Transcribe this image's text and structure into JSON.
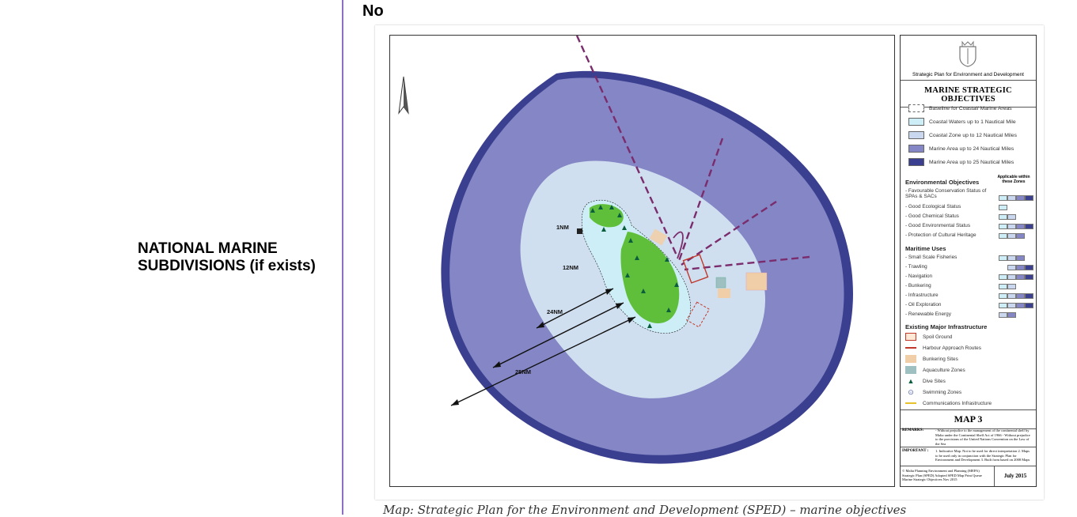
{
  "row_label": "NATIONAL MARINE SUBDIVISIONS (if exists)",
  "answer": "No",
  "map": {
    "distance_labels": [
      "1NM",
      "12NM",
      "24NM",
      "25NM"
    ],
    "colors": {
      "outer_25nm": "#3b3f8f",
      "marine_24nm": "#8486c5",
      "coastal_12nm": "#d0dff0",
      "coastal_1nm": "#cdeef6",
      "island": "#5fbf3a",
      "route_line": "#7a2c6c"
    }
  },
  "legend": {
    "org": "Strategic Plan for Environment and Development",
    "title": "MARINE STRATEGIC OBJECTIVES",
    "zones": [
      {
        "label": "Baseline for Coastal/ Marine Areas",
        "color": "#ffffff",
        "dashed": true
      },
      {
        "label": "Coastal Waters up to 1 Nautical Mile",
        "color": "#cdeef6"
      },
      {
        "label": "Coastal Zone up to 12 Nautical Miles",
        "color": "#c9d8ee"
      },
      {
        "label": "Marine Area up to 24 Nautical Miles",
        "color": "#8486c5"
      },
      {
        "label": "Marine Area up to 25 Nautical Miles",
        "color": "#3b3f8f"
      }
    ],
    "env_heading": "Environmental Objectives",
    "applicable": "Applicable within these Zones",
    "env_items": [
      "- Favourable Conservation Status of SPAs & SACs",
      "- Good Ecological Status",
      "- Good Chemical Status",
      "- Good Environmental Status",
      "- Protection of Cultural Heritage"
    ],
    "uses_heading": "Maritime Uses",
    "uses_items": [
      "- Small Scale Fisheries",
      "- Trawling",
      "- Navigation",
      "- Bunkering",
      "- Infrastructure",
      "- Oil Exploration",
      "- Renewable Energy"
    ],
    "infra_heading": "Existing Major Infrastructure",
    "infra_items": [
      {
        "label": "Spoil Ground",
        "icon": "spoil-ground-icon"
      },
      {
        "label": "Harbour Approach Routes",
        "icon": "harbour-route-icon"
      },
      {
        "label": "Bunkering Sites",
        "icon": "bunkering-site-icon"
      },
      {
        "label": "Aquaculture Zones",
        "icon": "aquaculture-zone-icon"
      },
      {
        "label": "Dive Sites",
        "icon": "dive-site-icon"
      },
      {
        "label": "Swimming Zones",
        "icon": "swimming-zone-icon"
      },
      {
        "label": "Communications Infrastructure",
        "icon": "communications-line-icon"
      }
    ],
    "map_number": "MAP 3",
    "remarks_label": "REMARKS:",
    "remarks_text": "- Without prejudice to the management of the continental shelf by Malta under the Continental Shelf Act of 1966 - Without prejudice to the provisions of the United Nations Convention on the Law of the Sea",
    "important_label": "IMPORTANT :",
    "important_text": "1. Indicative Map. Not to be used for direct interpretation 2. Maps to be used only in conjunction with the Strategic Plan for Environment and Development 3. Built form based on 2008 Maps",
    "source_text": "© Malta Planning Environment and Planning (MEPA) Strategic Plan (SPED) Adopted SPED Map Print Queue Marine Strategic Objectives Nov 2015",
    "date": "July 2015"
  },
  "caption": "Map: Strategic Plan for the Environment and Development (SPED) – marine objectives"
}
